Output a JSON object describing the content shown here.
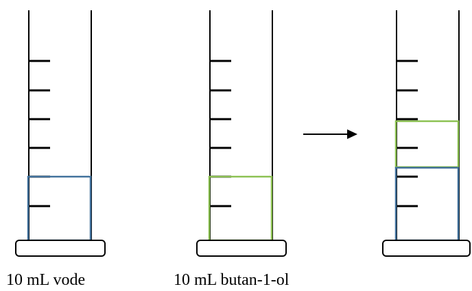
{
  "captions": {
    "water": "10 mL vode",
    "butanol": "10 mL butan-1-ol"
  },
  "colors": {
    "outline": "#000000",
    "water": "#41719c",
    "butanol": "#8cc152"
  },
  "cylinders": [
    {
      "id": "water-cylinder",
      "liquids": [
        "water"
      ]
    },
    {
      "id": "butanol-cylinder",
      "liquids": [
        "butanol"
      ]
    },
    {
      "id": "mixture-cylinder",
      "liquids": [
        "water",
        "butanol"
      ]
    }
  ]
}
